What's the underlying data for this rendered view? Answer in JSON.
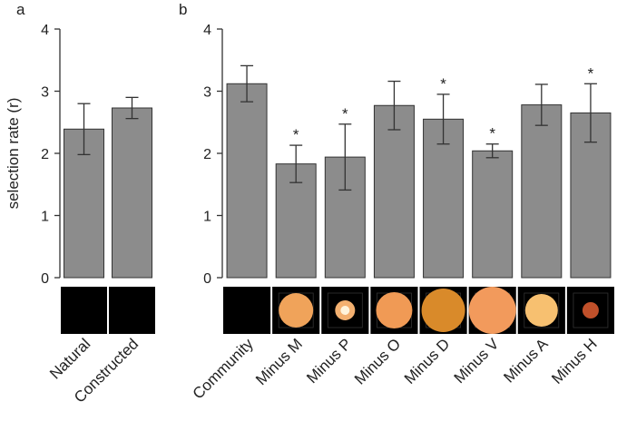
{
  "chart_data": [
    {
      "type": "bar",
      "panel_label": "a",
      "y_label": "selection rate (r)",
      "categories": [
        "Natural",
        "Constructed"
      ],
      "values": [
        2.39,
        2.73
      ],
      "errors": [
        0.41,
        0.17
      ],
      "color": "#8c8c8c",
      "ylim": [
        0,
        4
      ],
      "yticks": [
        0,
        1,
        2,
        3,
        4
      ]
    },
    {
      "type": "bar",
      "panel_label": "b",
      "categories": [
        "Community",
        "Minus M",
        "Minus P",
        "Minus O",
        "Minus D",
        "Minus V",
        "Minus A",
        "Minus H"
      ],
      "values": [
        3.12,
        1.83,
        1.94,
        2.77,
        2.55,
        2.04,
        2.78,
        2.65
      ],
      "errors": [
        0.29,
        0.3,
        0.53,
        0.39,
        0.4,
        0.11,
        0.33,
        0.47
      ],
      "color": "#8c8c8c",
      "ylim": [
        0,
        4
      ],
      "yticks": [
        0,
        1,
        2,
        3,
        4
      ],
      "annotations": [
        {
          "text": "*",
          "category": "Minus M"
        },
        {
          "text": "*",
          "category": "Minus P"
        },
        {
          "text": "*",
          "category": "Minus D"
        },
        {
          "text": "*",
          "category": "Minus V"
        },
        {
          "text": "*",
          "category": "Minus H"
        }
      ]
    }
  ]
}
